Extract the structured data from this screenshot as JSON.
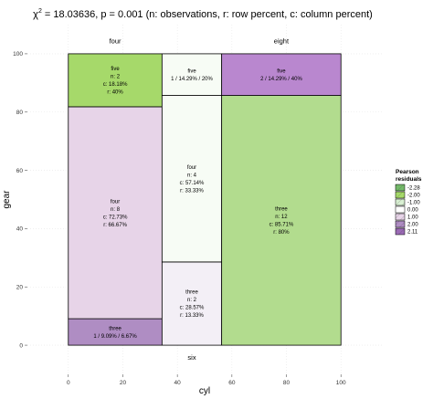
{
  "chart_data": {
    "type": "mosaic",
    "title_chi": "χ",
    "title_sup": "2",
    "title_rest": " = 18.03636, p = 0.001 (n: observations, r: row percent, c: column percent)",
    "xlabel": "cyl",
    "ylabel": "gear",
    "xlim": [
      -15,
      115
    ],
    "ylim": [
      -10,
      110
    ],
    "x_ticks": [
      0,
      20,
      40,
      60,
      80,
      100
    ],
    "y_ticks": [
      0,
      20,
      40,
      60,
      80,
      100
    ],
    "columns": [
      {
        "label": "four",
        "label_pos": "top",
        "x0": 0,
        "x1": 34.375
      },
      {
        "label": "six",
        "label_pos": "bottom",
        "x0": 34.375,
        "x1": 56.25
      },
      {
        "label": "eight",
        "label_pos": "top",
        "x0": 56.25,
        "x1": 100
      }
    ],
    "cells": [
      {
        "col": "four",
        "y0": 0,
        "y1": 9.09,
        "fill": "#af8dc3",
        "lines": [
          "three",
          "1 / 9.09% / 6.67%"
        ]
      },
      {
        "col": "four",
        "y0": 9.09,
        "y1": 81.82,
        "fill": "#e7d4e8",
        "lines": [
          "four",
          "n: 8",
          "c: 72.73%",
          "r: 66.67%"
        ]
      },
      {
        "col": "four",
        "y0": 81.82,
        "y1": 100,
        "fill": "#a6d96a",
        "lines": [
          "five",
          "n: 2",
          "c: 18.18%",
          "r: 40%"
        ]
      },
      {
        "col": "six",
        "y0": 0,
        "y1": 28.57,
        "fill": "#f3eff6",
        "lines": [
          "three",
          "n: 2",
          "c: 28.57%",
          "r: 13.33%"
        ]
      },
      {
        "col": "six",
        "y0": 28.57,
        "y1": 85.71,
        "fill": "#f7fcf5",
        "lines": [
          "four",
          "n: 4",
          "c: 57.14%",
          "r: 33.33%"
        ]
      },
      {
        "col": "six",
        "y0": 85.71,
        "y1": 100,
        "fill": "#f7fcf5",
        "lines": [
          "five",
          "1 / 14.29% / 20%"
        ]
      },
      {
        "col": "eight",
        "y0": 0,
        "y1": 85.71,
        "fill": "#b2dc8e",
        "lines": [
          "three",
          "n: 12",
          "c: 85.71%",
          "r: 80%"
        ]
      },
      {
        "col": "eight",
        "y0": 85.71,
        "y1": 100,
        "fill": "#b987cf",
        "lines": [
          "five",
          "2 / 14.29% / 40%"
        ]
      }
    ],
    "legend": {
      "title_line1": "Pearson",
      "title_line2": "residuals",
      "placement": "right",
      "entries": [
        {
          "label": "-2.28",
          "fill": "#74b96a",
          "hatch": true
        },
        {
          "label": "-2.00",
          "fill": "#a6d96a",
          "hatch": true
        },
        {
          "label": "-1.00",
          "fill": "#d9f0d3",
          "hatch": true
        },
        {
          "label": "0.00",
          "fill": "#ffffff",
          "hatch": false
        },
        {
          "label": "1.00",
          "fill": "#e7d4e8",
          "hatch": true
        },
        {
          "label": "2.00",
          "fill": "#af8dc3",
          "hatch": true
        },
        {
          "label": "2.11",
          "fill": "#9b6bb5",
          "hatch": true
        }
      ]
    },
    "grid": true
  }
}
